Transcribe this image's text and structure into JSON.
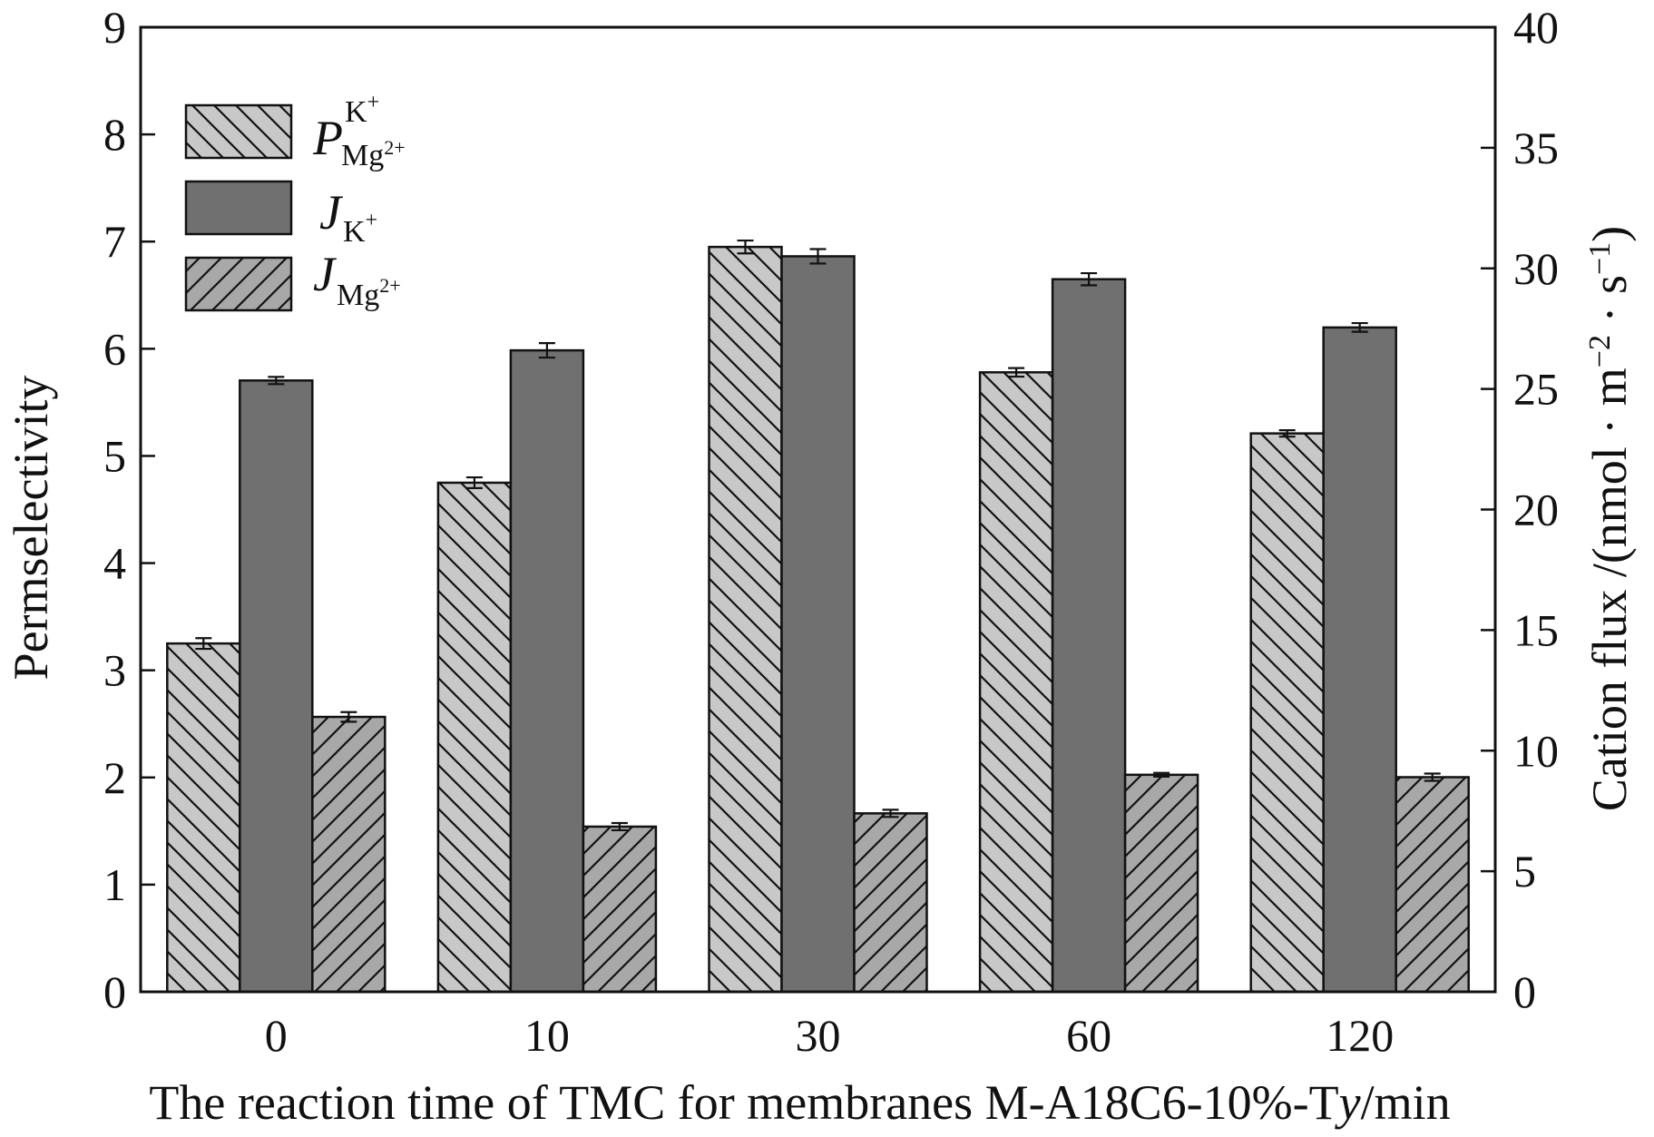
{
  "chart_data": {
    "type": "bar",
    "categories": [
      "0",
      "10",
      "30",
      "60",
      "120"
    ],
    "xlabel_parts": [
      "The reaction time of TMC for membranes M-A18C6-10%-T",
      "y",
      "/min"
    ],
    "ylabel": "Permselectivity",
    "y2label": "Cation flux /(nmol · m",
    "y2label_parts": {
      "m_sup": "−2",
      "mid": " · s",
      "s_sup": "−1",
      "end": ")"
    },
    "ylim": [
      0,
      9
    ],
    "y2lim": [
      0,
      40
    ],
    "yticks": [
      "0",
      "1",
      "2",
      "3",
      "4",
      "5",
      "6",
      "7",
      "8",
      "9"
    ],
    "y2ticks": [
      "0",
      "5",
      "10",
      "15",
      "20",
      "25",
      "30",
      "35",
      "40"
    ],
    "legend_position": "top-left",
    "series": [
      {
        "legend_main": "P",
        "legend_sup": "K",
        "legend_sup_charge": "+",
        "legend_sub": "Mg",
        "legend_sub_charge": "2+",
        "axis": "left",
        "pattern": "backslash-hatch",
        "fill": "#c8c8c8",
        "values": [
          3.25,
          4.75,
          6.95,
          5.78,
          5.21
        ],
        "errors": [
          0.05,
          0.05,
          0.06,
          0.04,
          0.03
        ]
      },
      {
        "legend_main": "J",
        "legend_sub": "K",
        "legend_sub_charge": "+",
        "axis": "right",
        "pattern": "solid",
        "fill": "#707070",
        "values": [
          25.35,
          26.6,
          30.5,
          29.55,
          27.55
        ],
        "errors": [
          0.15,
          0.3,
          0.3,
          0.25,
          0.18
        ]
      },
      {
        "legend_main": "J",
        "legend_sub": "Mg",
        "legend_sub_charge": "2+",
        "axis": "right",
        "pattern": "slash-hatch",
        "fill": "#a8a8a8",
        "values": [
          11.4,
          6.85,
          7.4,
          9.0,
          8.9
        ],
        "errors": [
          0.2,
          0.15,
          0.15,
          0.08,
          0.15
        ]
      }
    ]
  }
}
